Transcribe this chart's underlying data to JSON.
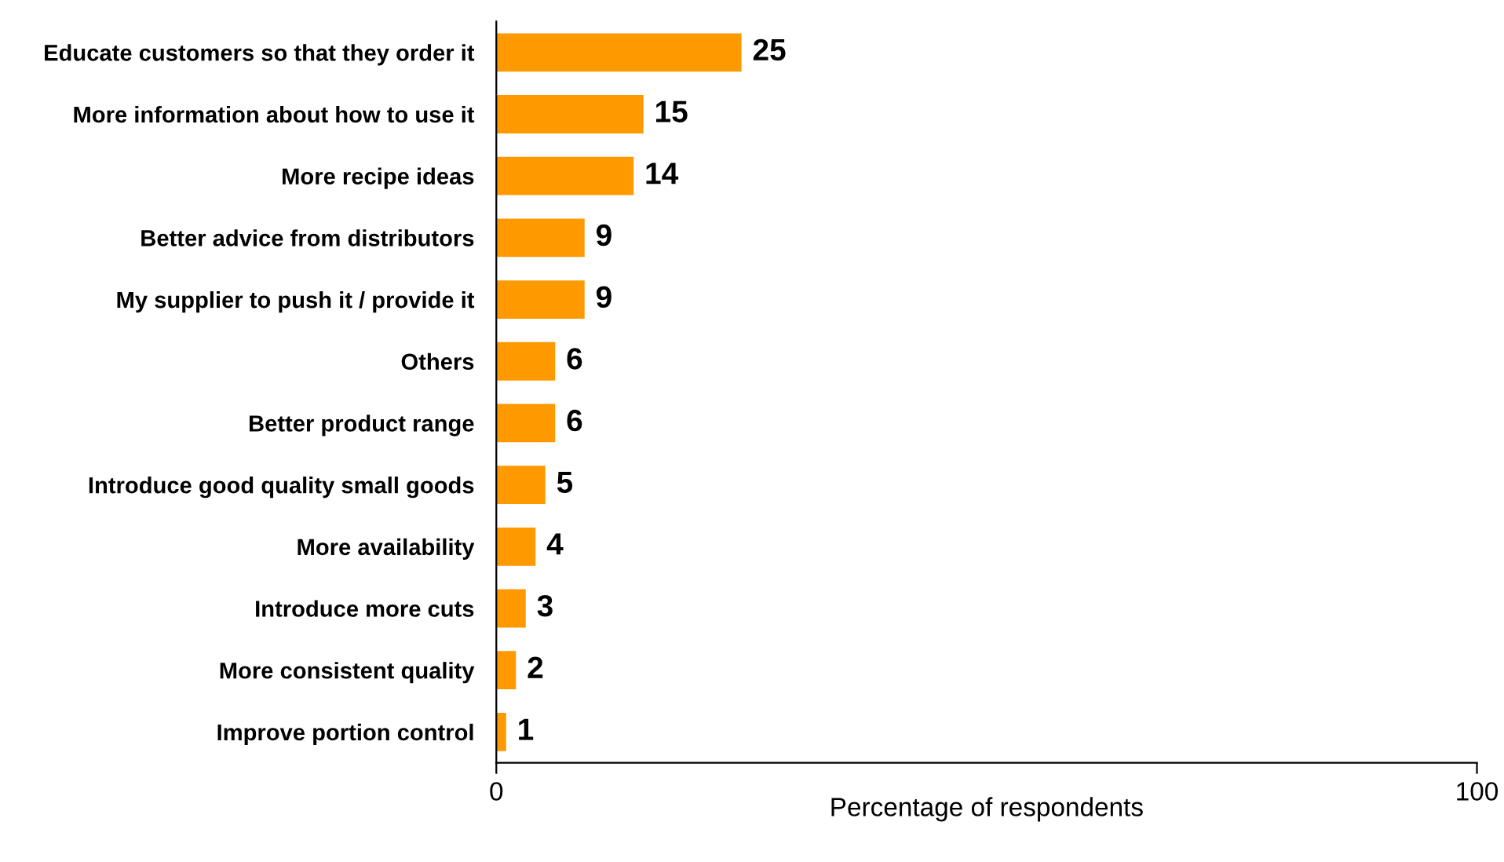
{
  "chart_data": {
    "type": "bar",
    "orientation": "horizontal",
    "xlabel": "Percentage of respondents",
    "categories": [
      "Educate customers so that they order it",
      "More information about how to use it",
      "More recipe ideas",
      "Better advice from distributors",
      "My supplier to push it / provide it",
      "Others",
      "Better product range",
      "Introduce good quality small goods",
      "More availability",
      "Introduce more cuts",
      "More consistent quality",
      "Improve portion control"
    ],
    "values": [
      25,
      15,
      14,
      9,
      9,
      6,
      6,
      5,
      4,
      3,
      2,
      1
    ],
    "color": "#ff9900",
    "xlim": [
      0,
      100
    ],
    "xticks": [
      0,
      100
    ],
    "grid": false,
    "legend": false,
    "data_labels": true
  }
}
